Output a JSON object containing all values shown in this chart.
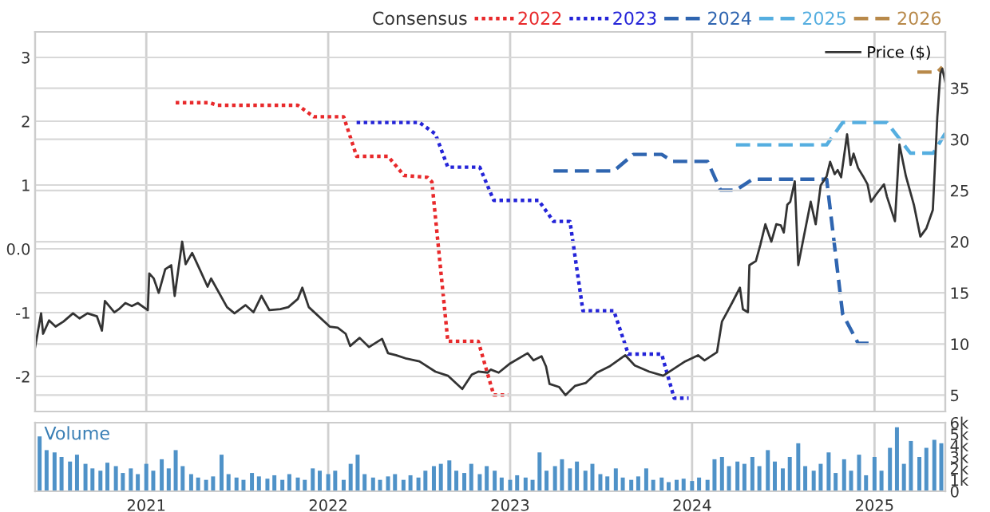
{
  "chart_data": [
    {
      "type": "line",
      "legend": "top",
      "legend_title": "Consensus",
      "grid": true,
      "tick_labels": "y",
      "xlim": [
        "2020-05-23",
        "2025-05-23"
      ],
      "xticks": [
        {
          "value": "2021-01-01",
          "label": null
        },
        {
          "value": "2022-01-01",
          "label": null
        },
        {
          "value": "2023-01-01",
          "label": null
        },
        {
          "value": "2024-01-01",
          "label": null
        },
        {
          "value": "2025-01-01",
          "label": null
        }
      ],
      "ylim": [
        -2.55,
        3.4
      ],
      "yticks": [
        -2,
        -1,
        {
          "value": 0,
          "label": "0.0"
        },
        1,
        2,
        3
      ],
      "y2lim": [
        3.4,
        40.5
      ],
      "y2ticks": [
        5,
        10,
        15,
        20,
        25,
        30,
        35
      ],
      "series": [
        {
          "name": "2022",
          "color": "#e8292b",
          "line_style": "dotted",
          "x": [
            "2021-03-01",
            "2021-05-08",
            "2021-05-23",
            "2021-11-01",
            "2021-12-03",
            "2022-02-01",
            "2022-02-27",
            "2022-05-01",
            "2022-06-02",
            "2022-07-19",
            "2022-07-28",
            "2022-08-29",
            "2022-10-29",
            "2022-11-29",
            "2022-12-28"
          ],
          "values": [
            2.29,
            2.29,
            2.25,
            2.25,
            2.07,
            2.07,
            1.45,
            1.45,
            1.15,
            1.12,
            1.05,
            -1.45,
            -1.45,
            -2.29,
            -2.29
          ]
        },
        {
          "name": "2023",
          "color": "#2424d8",
          "line_style": "dotted",
          "x": [
            "2022-02-27",
            "2022-07-03",
            "2022-08-04",
            "2022-08-29",
            "2022-11-01",
            "2022-11-29",
            "2023-02-27",
            "2023-03-29",
            "2023-05-01",
            "2023-05-27",
            "2023-07-28",
            "2023-08-26",
            "2023-11-01",
            "2023-11-26",
            "2023-12-25"
          ],
          "values": [
            1.98,
            1.98,
            1.8,
            1.28,
            1.28,
            0.76,
            0.76,
            0.43,
            0.43,
            -0.97,
            -0.97,
            -1.65,
            -1.65,
            -2.34,
            -2.34
          ]
        },
        {
          "name": "2024",
          "color": "#2f65b0",
          "line_style": "dashed",
          "x": [
            "2023-03-29",
            "2023-07-28",
            "2023-09-05",
            "2023-11-01",
            "2023-11-23",
            "2024-02-01",
            "2024-02-27",
            "2024-03-29",
            "2024-05-01",
            "2024-09-27",
            "2024-10-29",
            "2024-11-29",
            "2024-12-25"
          ],
          "values": [
            1.22,
            1.22,
            1.48,
            1.48,
            1.37,
            1.37,
            0.92,
            0.92,
            1.09,
            1.09,
            -1.02,
            -1.48,
            -1.48
          ]
        },
        {
          "name": "2025",
          "color": "#55aee0",
          "line_style": "dashed",
          "x": [
            "2024-03-29",
            "2024-09-27",
            "2024-10-29",
            "2025-01-26",
            "2025-03-14",
            "2025-04-29",
            "2025-05-23"
          ],
          "values": [
            1.63,
            1.63,
            1.98,
            1.98,
            1.5,
            1.5,
            1.81
          ]
        },
        {
          "name": "2026",
          "color": "#b8894a",
          "line_style": "dashed",
          "x": [
            "2025-03-28",
            "2025-05-07",
            "2025-05-17"
          ],
          "values": [
            2.77,
            2.77,
            2.85
          ]
        },
        {
          "name": "Price ($)",
          "color": "#333333",
          "line_style": "solid",
          "axis": "y2",
          "x": [
            "2020-05-23",
            "2020-06-04",
            "2020-06-08",
            "2020-06-20",
            "2020-07-03",
            "2020-07-19",
            "2020-08-07",
            "2020-08-20",
            "2020-09-05",
            "2020-09-24",
            "2020-10-04",
            "2020-10-10",
            "2020-10-29",
            "2020-11-07",
            "2020-11-20",
            "2020-12-03",
            "2020-12-15",
            "2021-01-04",
            "2021-01-07",
            "2021-01-16",
            "2021-01-26",
            "2021-02-08",
            "2021-02-20",
            "2021-02-27",
            "2021-03-14",
            "2021-03-21",
            "2021-04-03",
            "2021-04-22",
            "2021-05-04",
            "2021-05-11",
            "2021-06-12",
            "2021-06-27",
            "2021-07-19",
            "2021-08-04",
            "2021-08-20",
            "2021-09-05",
            "2021-09-27",
            "2021-10-13",
            "2021-11-01",
            "2021-11-10",
            "2021-11-23",
            "2022-01-04",
            "2022-01-20",
            "2022-02-05",
            "2022-02-14",
            "2022-03-05",
            "2022-03-24",
            "2022-04-19",
            "2022-05-01",
            "2022-05-17",
            "2022-06-05",
            "2022-07-03",
            "2022-08-04",
            "2022-08-29",
            "2022-09-27",
            "2022-10-16",
            "2022-10-29",
            "2022-11-17",
            "2022-11-23",
            "2022-12-09",
            "2023-01-01",
            "2023-02-05",
            "2023-02-17",
            "2023-03-05",
            "2023-03-14",
            "2023-03-21",
            "2023-04-09",
            "2023-04-22",
            "2023-05-11",
            "2023-06-02",
            "2023-06-24",
            "2023-07-19",
            "2023-08-20",
            "2023-09-08",
            "2023-10-07",
            "2023-11-04",
            "2023-11-23",
            "2023-12-18",
            "2024-01-13",
            "2024-01-26",
            "2024-02-20",
            "2024-03-01",
            "2024-03-10",
            "2024-03-21",
            "2024-04-06",
            "2024-04-12",
            "2024-04-22",
            "2024-04-25",
            "2024-05-08",
            "2024-05-17",
            "2024-05-27",
            "2024-06-08",
            "2024-06-18",
            "2024-06-27",
            "2024-07-03",
            "2024-07-10",
            "2024-07-16",
            "2024-07-25",
            "2024-08-01",
            "2024-08-11",
            "2024-08-26",
            "2024-09-05",
            "2024-09-15",
            "2024-09-27",
            "2024-10-04",
            "2024-10-13",
            "2024-10-19",
            "2024-10-26",
            "2024-11-07",
            "2024-11-14",
            "2024-11-20",
            "2024-11-29",
            "2024-12-09",
            "2024-12-18",
            "2024-12-25",
            "2025-01-04",
            "2025-01-20",
            "2025-01-26",
            "2025-02-11",
            "2025-02-20",
            "2025-03-05",
            "2025-03-21",
            "2025-04-03",
            "2025-04-15",
            "2025-04-28",
            "2025-05-07",
            "2025-05-13",
            "2025-05-17",
            "2025-05-23"
          ],
          "values": [
            9.7,
            13.0,
            11.0,
            12.3,
            11.7,
            12.2,
            13.0,
            12.5,
            13.0,
            12.7,
            11.3,
            14.2,
            13.1,
            13.4,
            14.0,
            13.7,
            14.0,
            13.3,
            16.9,
            16.4,
            15.0,
            17.3,
            17.7,
            14.7,
            20.0,
            17.8,
            18.9,
            16.9,
            15.6,
            16.4,
            13.6,
            13.0,
            13.8,
            13.1,
            14.7,
            13.3,
            13.4,
            13.6,
            14.4,
            15.5,
            13.6,
            11.7,
            11.6,
            11.0,
            9.8,
            10.6,
            9.7,
            10.5,
            9.1,
            8.9,
            8.6,
            8.3,
            7.3,
            6.9,
            5.6,
            7.0,
            7.3,
            7.2,
            7.5,
            7.2,
            8.1,
            9.1,
            8.4,
            8.8,
            7.8,
            6.1,
            5.8,
            5.0,
            5.9,
            6.2,
            7.2,
            7.8,
            8.9,
            7.9,
            7.3,
            6.9,
            7.5,
            8.3,
            8.9,
            8.4,
            9.2,
            12.2,
            13.0,
            14.0,
            15.5,
            13.4,
            13.1,
            17.7,
            18.1,
            19.7,
            21.7,
            20.0,
            21.7,
            21.6,
            20.9,
            23.6,
            23.9,
            25.9,
            17.7,
            20.2,
            23.9,
            21.7,
            25.5,
            26.4,
            27.8,
            26.6,
            27.0,
            26.3,
            30.5,
            27.5,
            28.6,
            27.2,
            26.4,
            25.6,
            23.9,
            24.6,
            25.6,
            24.4,
            22.0,
            29.5,
            26.4,
            23.6,
            20.5,
            21.3,
            23.1,
            32.2,
            36.4,
            36.9,
            35.6
          ]
        }
      ]
    },
    {
      "type": "bar",
      "grid": "x",
      "annotations": [
        "Volume"
      ],
      "xlim": [
        "2020-05-23",
        "2025-05-23"
      ],
      "xticks": [
        {
          "value": "2021-01-01",
          "label": "2021"
        },
        {
          "value": "2022-01-01",
          "label": "2022"
        },
        {
          "value": "2023-01-01",
          "label": "2023"
        },
        {
          "value": "2024-01-01",
          "label": "2024"
        },
        {
          "value": "2025-01-01",
          "label": "2025"
        }
      ],
      "y2lim": [
        0,
        6
      ],
      "y2ticks": [
        0,
        {
          "value": 1,
          "label": "1k"
        },
        {
          "value": 2,
          "label": "2k"
        },
        {
          "value": 3,
          "label": "3k"
        },
        {
          "value": 4,
          "label": "4k"
        },
        {
          "value": 5,
          "label": "5k"
        },
        {
          "value": 6,
          "label": "6k"
        }
      ],
      "x": [
        "2020-06-01",
        "2020-06-15",
        "2020-07-01",
        "2020-07-15",
        "2020-08-01",
        "2020-08-15",
        "2020-09-01",
        "2020-09-15",
        "2020-10-01",
        "2020-10-15",
        "2020-11-01",
        "2020-11-15",
        "2020-12-01",
        "2020-12-15",
        "2021-01-01",
        "2021-01-15",
        "2021-02-01",
        "2021-02-15",
        "2021-03-01",
        "2021-03-15",
        "2021-04-01",
        "2021-04-15",
        "2021-05-01",
        "2021-05-15",
        "2021-06-01",
        "2021-06-15",
        "2021-07-01",
        "2021-07-15",
        "2021-08-01",
        "2021-08-15",
        "2021-09-01",
        "2021-09-15",
        "2021-10-01",
        "2021-10-15",
        "2021-11-01",
        "2021-11-15",
        "2021-12-01",
        "2021-12-15",
        "2022-01-01",
        "2022-01-15",
        "2022-02-01",
        "2022-02-15",
        "2022-03-01",
        "2022-03-15",
        "2022-04-01",
        "2022-04-15",
        "2022-05-01",
        "2022-05-15",
        "2022-06-01",
        "2022-06-15",
        "2022-07-01",
        "2022-07-15",
        "2022-08-01",
        "2022-08-15",
        "2022-09-01",
        "2022-09-15",
        "2022-10-01",
        "2022-10-15",
        "2022-11-01",
        "2022-11-15",
        "2022-12-01",
        "2022-12-15",
        "2023-01-01",
        "2023-01-15",
        "2023-02-01",
        "2023-02-15",
        "2023-03-01",
        "2023-03-15",
        "2023-04-01",
        "2023-04-15",
        "2023-05-01",
        "2023-05-15",
        "2023-06-01",
        "2023-06-15",
        "2023-07-01",
        "2023-07-15",
        "2023-08-01",
        "2023-08-15",
        "2023-09-01",
        "2023-09-15",
        "2023-10-01",
        "2023-10-15",
        "2023-11-01",
        "2023-11-15",
        "2023-12-01",
        "2023-12-15",
        "2024-01-01",
        "2024-01-15",
        "2024-02-01",
        "2024-02-15",
        "2024-03-01",
        "2024-03-15",
        "2024-04-01",
        "2024-04-15",
        "2024-05-01",
        "2024-05-15",
        "2024-06-01",
        "2024-06-15",
        "2024-07-01",
        "2024-07-15",
        "2024-08-01",
        "2024-08-15",
        "2024-09-01",
        "2024-09-15",
        "2024-10-01",
        "2024-10-15",
        "2024-11-01",
        "2024-11-15",
        "2024-12-01",
        "2024-12-15",
        "2025-01-01",
        "2025-01-15",
        "2025-02-01",
        "2025-02-15",
        "2025-03-01",
        "2025-03-15",
        "2025-04-01",
        "2025-04-15",
        "2025-05-01",
        "2025-05-15"
      ],
      "series": [
        {
          "axis": "y2",
          "color": "#4f92c8",
          "values": [
            4.8,
            3.6,
            3.4,
            3.0,
            2.6,
            3.2,
            2.4,
            2.0,
            1.8,
            2.5,
            2.2,
            1.6,
            2.0,
            1.5,
            2.4,
            1.8,
            2.8,
            2.0,
            3.6,
            2.2,
            1.5,
            1.2,
            1.0,
            1.3,
            3.2,
            1.5,
            1.2,
            1.0,
            1.6,
            1.3,
            1.1,
            1.4,
            1.0,
            1.5,
            1.2,
            1.0,
            2.0,
            1.8,
            1.5,
            1.8,
            1.0,
            2.4,
            3.2,
            1.5,
            1.2,
            1.0,
            1.3,
            1.5,
            1.0,
            1.4,
            1.2,
            1.8,
            2.2,
            2.4,
            2.7,
            1.8,
            1.6,
            2.4,
            1.5,
            2.2,
            1.8,
            1.2,
            1.0,
            1.4,
            1.2,
            1.0,
            3.4,
            1.8,
            2.2,
            2.8,
            2.0,
            2.6,
            1.8,
            2.4,
            1.5,
            1.3,
            2.0,
            1.2,
            1.0,
            1.3,
            2.0,
            1.0,
            1.2,
            0.8,
            1.0,
            1.1,
            0.9,
            1.2,
            1.0,
            2.8,
            3.0,
            2.2,
            2.6,
            2.4,
            3.0,
            2.2,
            3.6,
            2.6,
            2.0,
            3.0,
            4.2,
            2.2,
            1.8,
            2.4,
            3.4,
            1.6,
            2.8,
            1.8,
            3.2,
            1.4,
            3.0,
            1.8,
            3.8,
            5.6,
            2.4,
            4.4,
            3.0,
            3.8,
            4.5,
            4.2
          ]
        }
      ]
    }
  ]
}
